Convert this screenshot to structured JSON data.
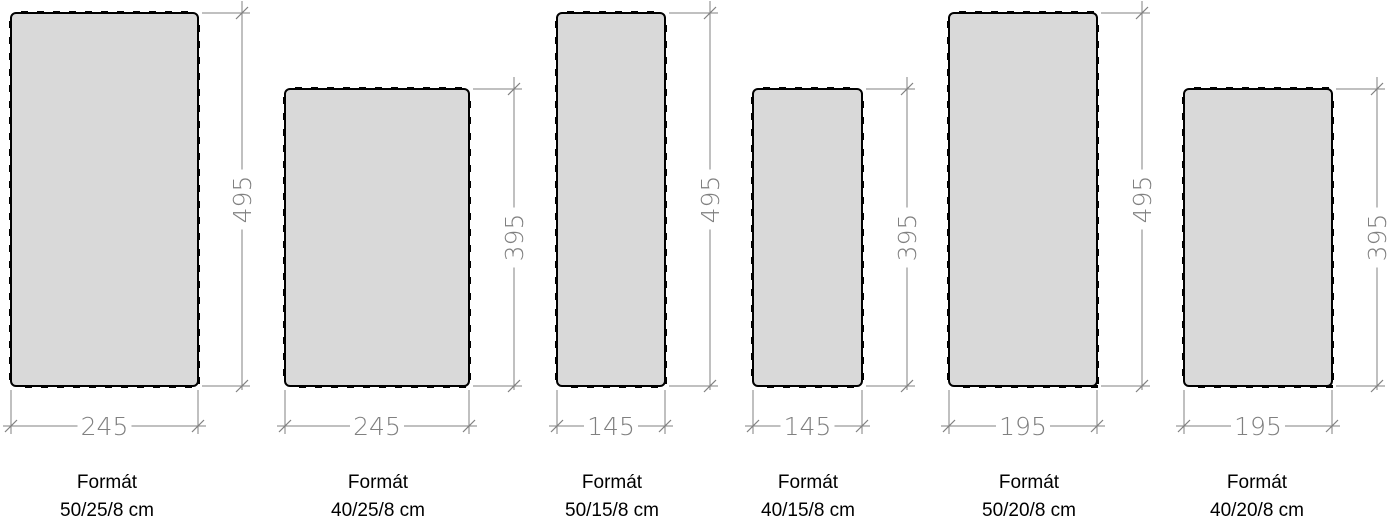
{
  "formats": [
    {
      "height_label": "495",
      "width_label": "245",
      "caption_line1": "Formát",
      "caption_line2": "50/25/8 cm"
    },
    {
      "height_label": "395",
      "width_label": "245",
      "caption_line1": "Formát",
      "caption_line2": "40/25/8 cm"
    },
    {
      "height_label": "495",
      "width_label": "145",
      "caption_line1": "Formát",
      "caption_line2": "50/15/8 cm"
    },
    {
      "height_label": "395",
      "width_label": "145",
      "caption_line1": "Formát",
      "caption_line2": "40/15/8 cm"
    },
    {
      "height_label": "495",
      "width_label": "195",
      "caption_line1": "Formát",
      "caption_line2": "50/20/8 cm"
    },
    {
      "height_label": "395",
      "width_label": "195",
      "caption_line1": "Formát",
      "caption_line2": "40/20/8 cm"
    }
  ],
  "colors": {
    "tile_fill": "#d9d9d9",
    "tile_stroke": "#000000",
    "dimension_line": "#808080"
  }
}
